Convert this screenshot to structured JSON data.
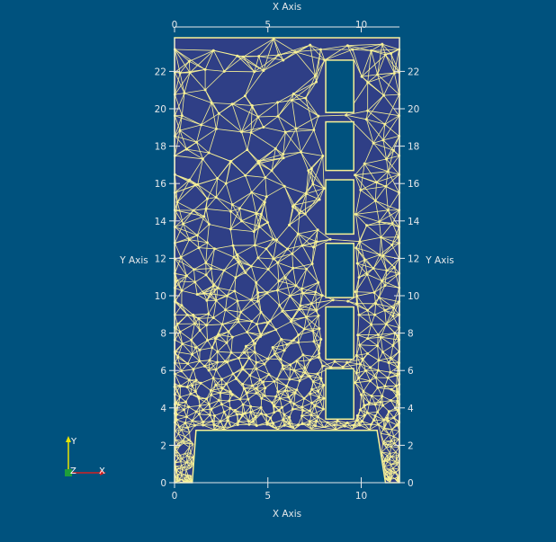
{
  "viewport": {
    "background": "#00527e",
    "mesh_fill": "#2f3f86",
    "mesh_edge": "#f7f196",
    "axis_color": "#e6e8ea",
    "axis_text_color": "#e6e8ea"
  },
  "axes": {
    "x_title_top": "X Axis",
    "x_title_bottom": "X Axis",
    "y_title_left": "Y Axis",
    "y_title_right": "Y Axis",
    "x_ticks": [
      {
        "value": 0,
        "label": "0"
      },
      {
        "value": 5,
        "label": "5"
      },
      {
        "value": 10,
        "label": "10"
      }
    ],
    "y_ticks": [
      {
        "value": 0,
        "label": "0"
      },
      {
        "value": 2,
        "label": "2"
      },
      {
        "value": 4,
        "label": "4"
      },
      {
        "value": 6,
        "label": "6"
      },
      {
        "value": 8,
        "label": "8"
      },
      {
        "value": 10,
        "label": "10"
      },
      {
        "value": 12,
        "label": "12"
      },
      {
        "value": 14,
        "label": "14"
      },
      {
        "value": 16,
        "label": "16"
      },
      {
        "value": 18,
        "label": "18"
      },
      {
        "value": 20,
        "label": "20"
      },
      {
        "value": 22,
        "label": "22"
      }
    ],
    "x_range": [
      0,
      12.05
    ],
    "y_range": [
      0,
      23.8
    ]
  },
  "geometry": {
    "outer_top": 23.8,
    "outer_right": 12.05,
    "step_y": 2.8,
    "feet": [
      {
        "x0": 0,
        "x1": 0.95
      },
      {
        "x0": 11.3,
        "x1": 12.05
      }
    ],
    "inner_notch": {
      "x0": 1.15,
      "x1": 10.85
    },
    "slots": [
      {
        "x0": 8.1,
        "x1": 9.6,
        "y0": 3.4,
        "y1": 6.1
      },
      {
        "x0": 8.1,
        "x1": 9.6,
        "y0": 6.6,
        "y1": 9.4
      },
      {
        "x0": 8.1,
        "x1": 9.6,
        "y0": 9.9,
        "y1": 12.8
      },
      {
        "x0": 8.1,
        "x1": 9.6,
        "y0": 13.3,
        "y1": 16.2
      },
      {
        "x0": 8.1,
        "x1": 9.6,
        "y0": 16.7,
        "y1": 19.3
      },
      {
        "x0": 8.1,
        "x1": 9.6,
        "y0": 19.8,
        "y1": 22.6
      }
    ]
  },
  "orientation_axes": {
    "y_label": "Y",
    "z_label": "Z",
    "x_label": "X",
    "y_color": "#e8e400",
    "x_color": "#d42020",
    "z_color": "#1e9e3a"
  }
}
